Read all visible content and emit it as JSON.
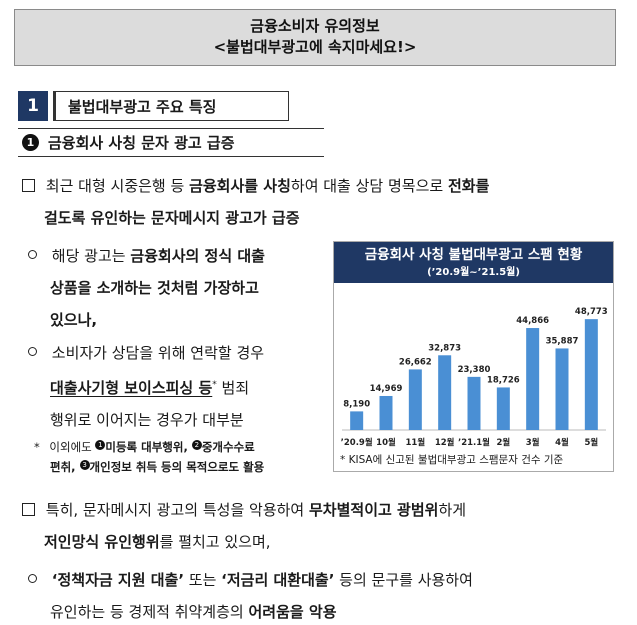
{
  "header": {
    "title": "금융소비자 유의정보",
    "subtitle": "<불법대부광고에 속지마세요!>"
  },
  "section": {
    "number": "1",
    "label": "불법대부광고 주요 특징"
  },
  "subsection": {
    "marker": "1",
    "label": "금융회사 사칭 문자 광고 급증"
  },
  "paragraphs": {
    "p1_line1_a": "최근 대형 시중은행 등 ",
    "p1_line1_b": "금융회사를 사칭",
    "p1_line1_c": "하여 대출 상담 명목으로 ",
    "p1_line1_d": "전화를",
    "p1_line2": "걸도록 유인하는 문자메시지 광고가 급증",
    "b1_l1_a": "해당 광고는 ",
    "b1_l1_b": "금융회사의 정식 대출",
    "b1_l2": "상품을 소개하는 것처럼 가장하고",
    "b1_l3": "있으나,",
    "b2_l1": "소비자가 상담을 위해 연락할 경우",
    "b2_l2_a": "대출사기형 보이스피싱 등",
    "b2_l2_star": "*",
    "b2_l2_b": " 범죄",
    "b2_l3": "행위로 이어지는 경우가 대부분",
    "note_star": "*",
    "note_l1_a": "이외에도 ",
    "note_m1": "1",
    "note_l1_b": "미등록 대부행위, ",
    "note_m2": "2",
    "note_l1_c": "중개수수료",
    "note_l2_a": "편취, ",
    "note_m3": "3",
    "note_l2_b": "개인정보 취득 등의 목적으로도 활용",
    "p2_l1_a": "특히, 문자메시지 광고의 특성을 악용하여 ",
    "p2_l1_b": "무차별적이고 광범위",
    "p2_l1_c": "하게",
    "p2_l2_a": "저인망식 유인행위",
    "p2_l2_b": "를 펼치고 있으며,",
    "b3_l1_a": "‘정책자금 지원 대출’",
    "b3_l1_b": " 또는 ",
    "b3_l1_c": "‘저금리 대환대출’",
    "b3_l1_d": " 등의 문구를 사용하여",
    "b3_l2_a": "유인하는 등 경제적 취약계층의 ",
    "b3_l2_b": "어려움을 악용"
  },
  "chart_data": {
    "type": "bar",
    "title": "금융회사 사칭 불법대부광고 스팸 현황",
    "subtitle": "(’20.9월~’21.5월)",
    "categories": [
      "’20.9월",
      "10월",
      "11월",
      "12월",
      "’21.1월",
      "2월",
      "3월",
      "4월",
      "5월"
    ],
    "values": [
      8190,
      14969,
      26662,
      32873,
      23380,
      18726,
      44866,
      35887,
      48773
    ],
    "value_labels": [
      "8,190",
      "14,969",
      "26,662",
      "32,873",
      "23,380",
      "18,726",
      "44,866",
      "35,887",
      "48,773"
    ],
    "ylim": [
      0,
      55000
    ],
    "bar_color": "#4a8fd4",
    "footnote": "* KISA에 신고된 불법대부광고 스팸문자 건수 기준"
  },
  "colors": {
    "navy": "#1f3864",
    "title_bg": "#dcdcdc"
  }
}
